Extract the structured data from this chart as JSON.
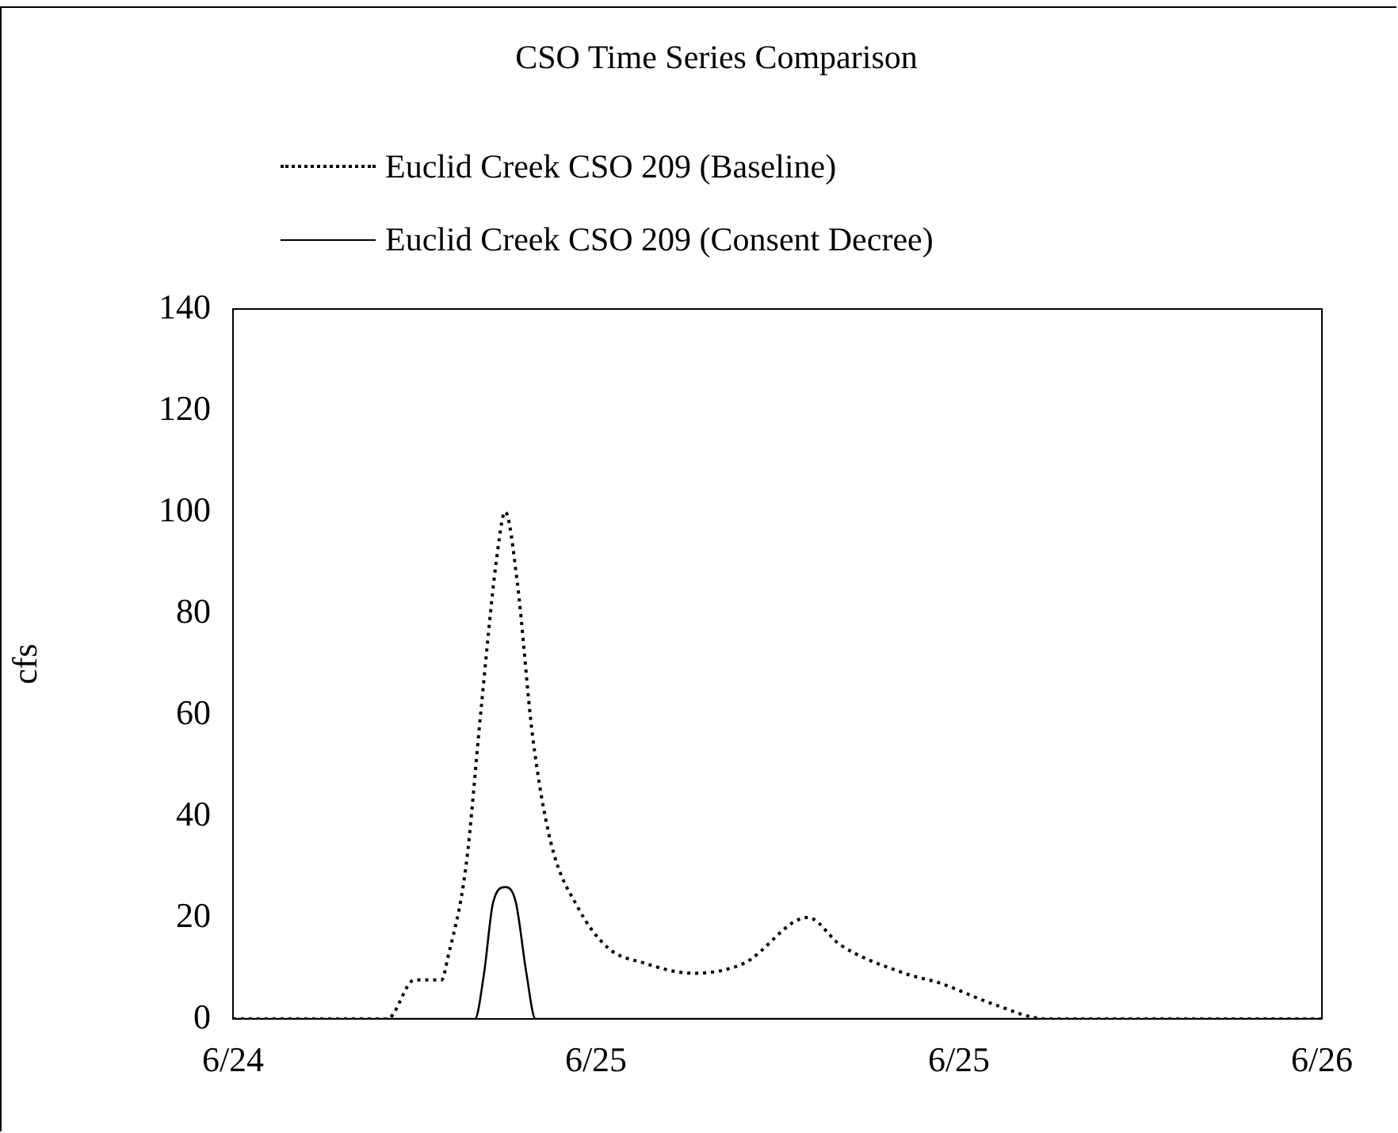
{
  "chart_data": {
    "type": "line",
    "title": "CSO Time Series Comparison",
    "ylabel": "cfs",
    "xlim": [
      "--06-24T12:00",
      "--06-26T00:00"
    ],
    "xticks": [
      {
        "value": "--06-24T12:00",
        "label": "6/24"
      },
      {
        "value": "--06-25T00:00",
        "label": "6/25"
      },
      {
        "value": "--06-25T12:00",
        "label": "6/25"
      },
      {
        "value": "--06-26T00:00",
        "label": "6/26"
      }
    ],
    "ylim": [
      0,
      140
    ],
    "yticks": [
      0,
      20,
      40,
      60,
      80,
      100,
      120,
      140
    ],
    "grid": false,
    "legend": "top",
    "marker": "none",
    "series": [
      {
        "name": "Euclid Creek CSO 209 (Baseline)",
        "color": "#000000",
        "line_style": "dotted",
        "x": [
          "--06-24T12:00",
          "--06-24T17:06",
          "--06-24T18:00",
          "--06-24T18:54",
          "--06-24T19:06",
          "--06-24T19:42",
          "--06-24T20:12",
          "--06-24T20:42",
          "--06-24T21:00",
          "--06-24T21:24",
          "--06-24T21:54",
          "--06-24T22:30",
          "--06-24T23:24",
          "--06-25T00:24",
          "--06-25T01:36",
          "--06-25T03:12",
          "--06-25T04:54",
          "--06-25T07:00",
          "--06-25T08:06",
          "--06-25T10:12",
          "--06-25T11:24",
          "--06-25T13:06",
          "--06-25T14:54",
          "--06-26T00:00"
        ],
        "values": [
          0,
          0,
          7.7,
          7.7,
          12,
          30,
          61,
          90,
          100,
          86,
          56,
          35,
          22,
          14,
          11,
          9,
          11,
          20,
          14.5,
          9,
          7,
          3,
          0,
          0
        ]
      },
      {
        "name": "Euclid Creek CSO 209 (Consent Decree)",
        "color": "#000000",
        "line_style": "solid",
        "x": [
          "--06-24T12:00",
          "--06-24T20:00",
          "--06-24T20:18",
          "--06-24T20:36",
          "--06-24T21:00",
          "--06-24T21:21",
          "--06-24T21:42",
          "--06-24T22:00",
          "--06-26T00:00"
        ],
        "values": [
          0,
          0,
          9,
          23,
          26,
          23,
          9,
          0,
          0
        ]
      }
    ]
  }
}
